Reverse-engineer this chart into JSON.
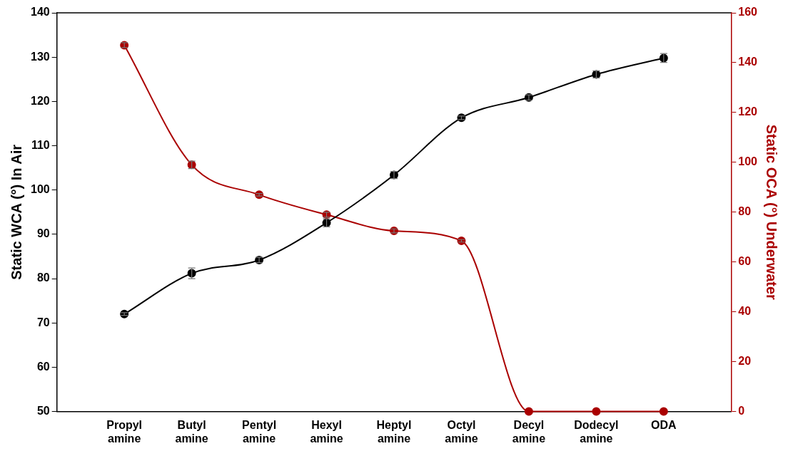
{
  "chart_data": {
    "type": "line",
    "ylabel": "Static WCA (°) In Air",
    "y2label": "Static OCA (°) Underwater",
    "categories": [
      "Propyl amine",
      "Butyl amine",
      "Pentyl amine",
      "Hexyl amine",
      "Heptyl amine",
      "Octyl amine",
      "Decyl amine",
      "Dodecyl amine",
      "ODA"
    ],
    "series": [
      {
        "color": "#000000",
        "values": [
          72,
          81.2,
          84.2,
          92.6,
          103.4,
          116.3,
          120.9,
          126.1,
          129.8
        ],
        "errors": [
          0.3,
          1.2,
          0.6,
          0.9,
          0.8,
          0.4,
          0.6,
          0.8,
          1.0
        ]
      },
      {
        "color": "#aa0000",
        "axis": "y2",
        "values": [
          147,
          99,
          87,
          79,
          72.5,
          68.5,
          0,
          0,
          0
        ],
        "errors": [
          1,
          1.5,
          0.5,
          1,
          0.8,
          0.5,
          null,
          null,
          null
        ]
      }
    ],
    "ylim": [
      50,
      140
    ],
    "yticks": [
      50,
      60,
      70,
      80,
      90,
      100,
      110,
      120,
      130,
      140
    ],
    "y2lim": [
      0,
      160
    ],
    "y2ticks": [
      0,
      20,
      40,
      60,
      80,
      100,
      120,
      140,
      160
    ],
    "grid": false,
    "legend": false,
    "marker": "circle",
    "line_style": "solid"
  }
}
